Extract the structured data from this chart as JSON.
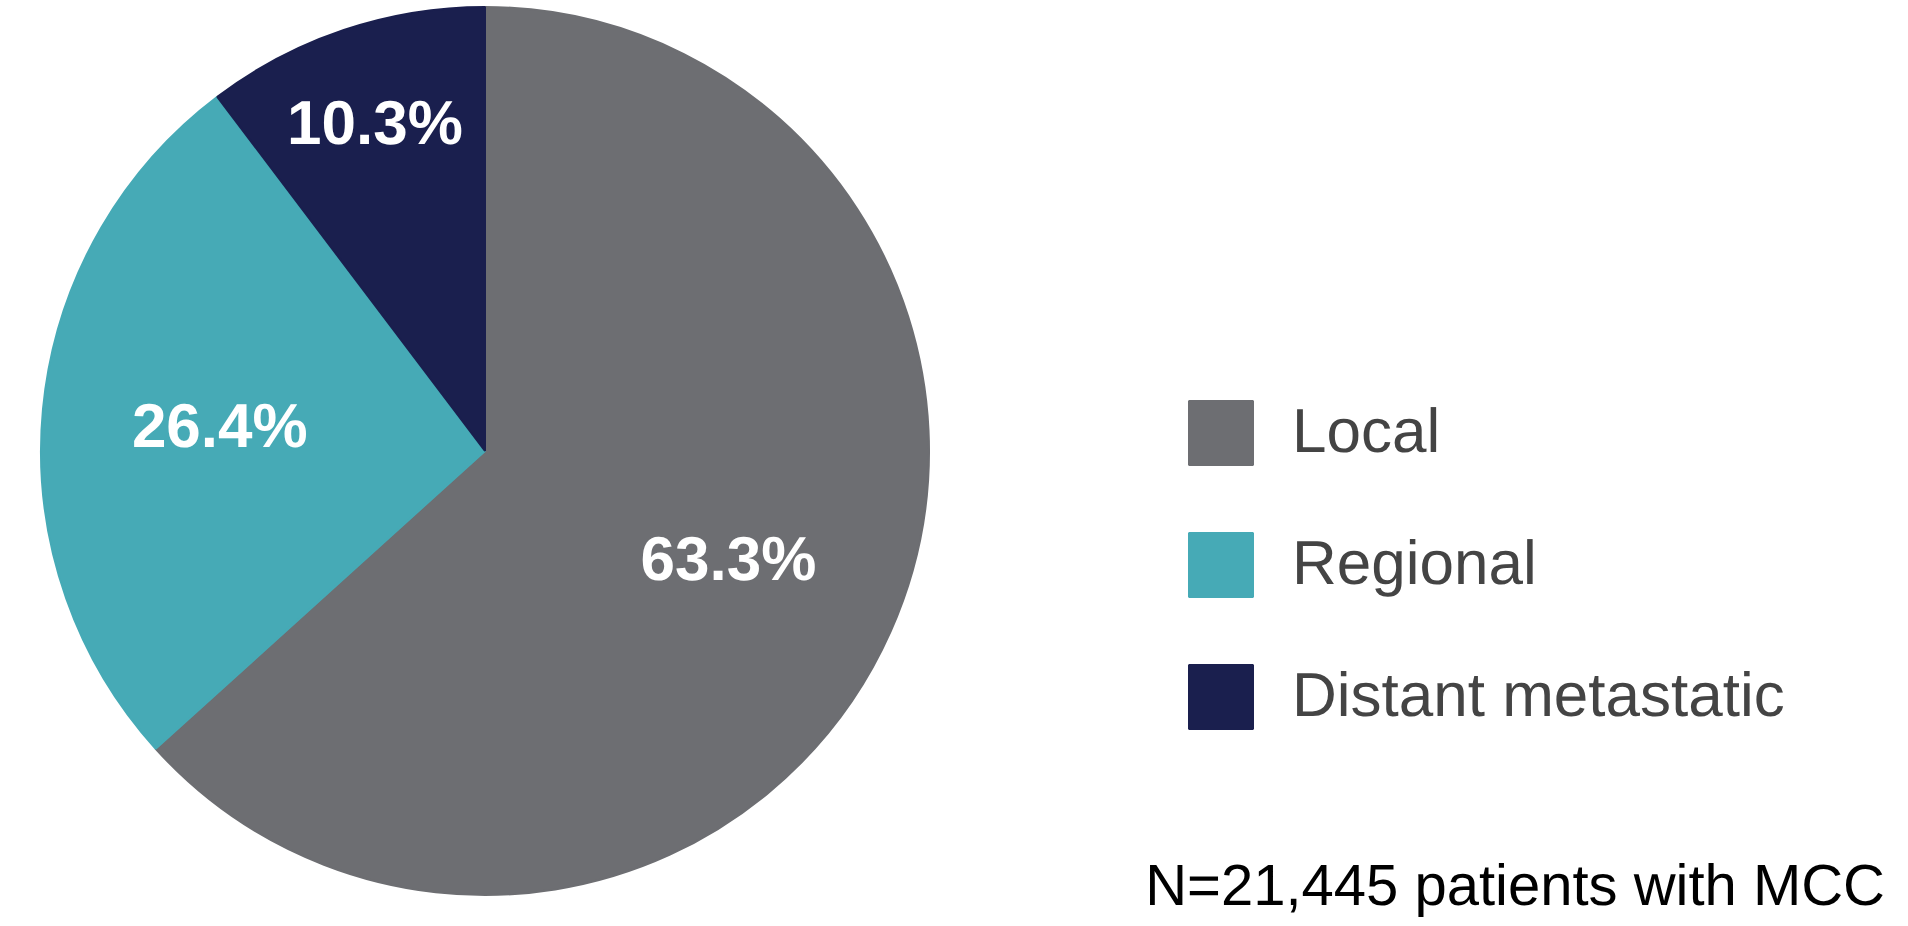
{
  "chart_data": {
    "type": "pie",
    "categories": [
      "Local",
      "Regional",
      "Distant metastatic"
    ],
    "values": [
      63.3,
      26.4,
      10.3
    ],
    "colors": [
      "#6d6e72",
      "#46aab6",
      "#1a1f4e"
    ],
    "value_labels": [
      "63.3%",
      "26.4%",
      "10.3%"
    ],
    "legend": "right",
    "annotations": [
      "N=21,445 patients with MCC"
    ]
  }
}
